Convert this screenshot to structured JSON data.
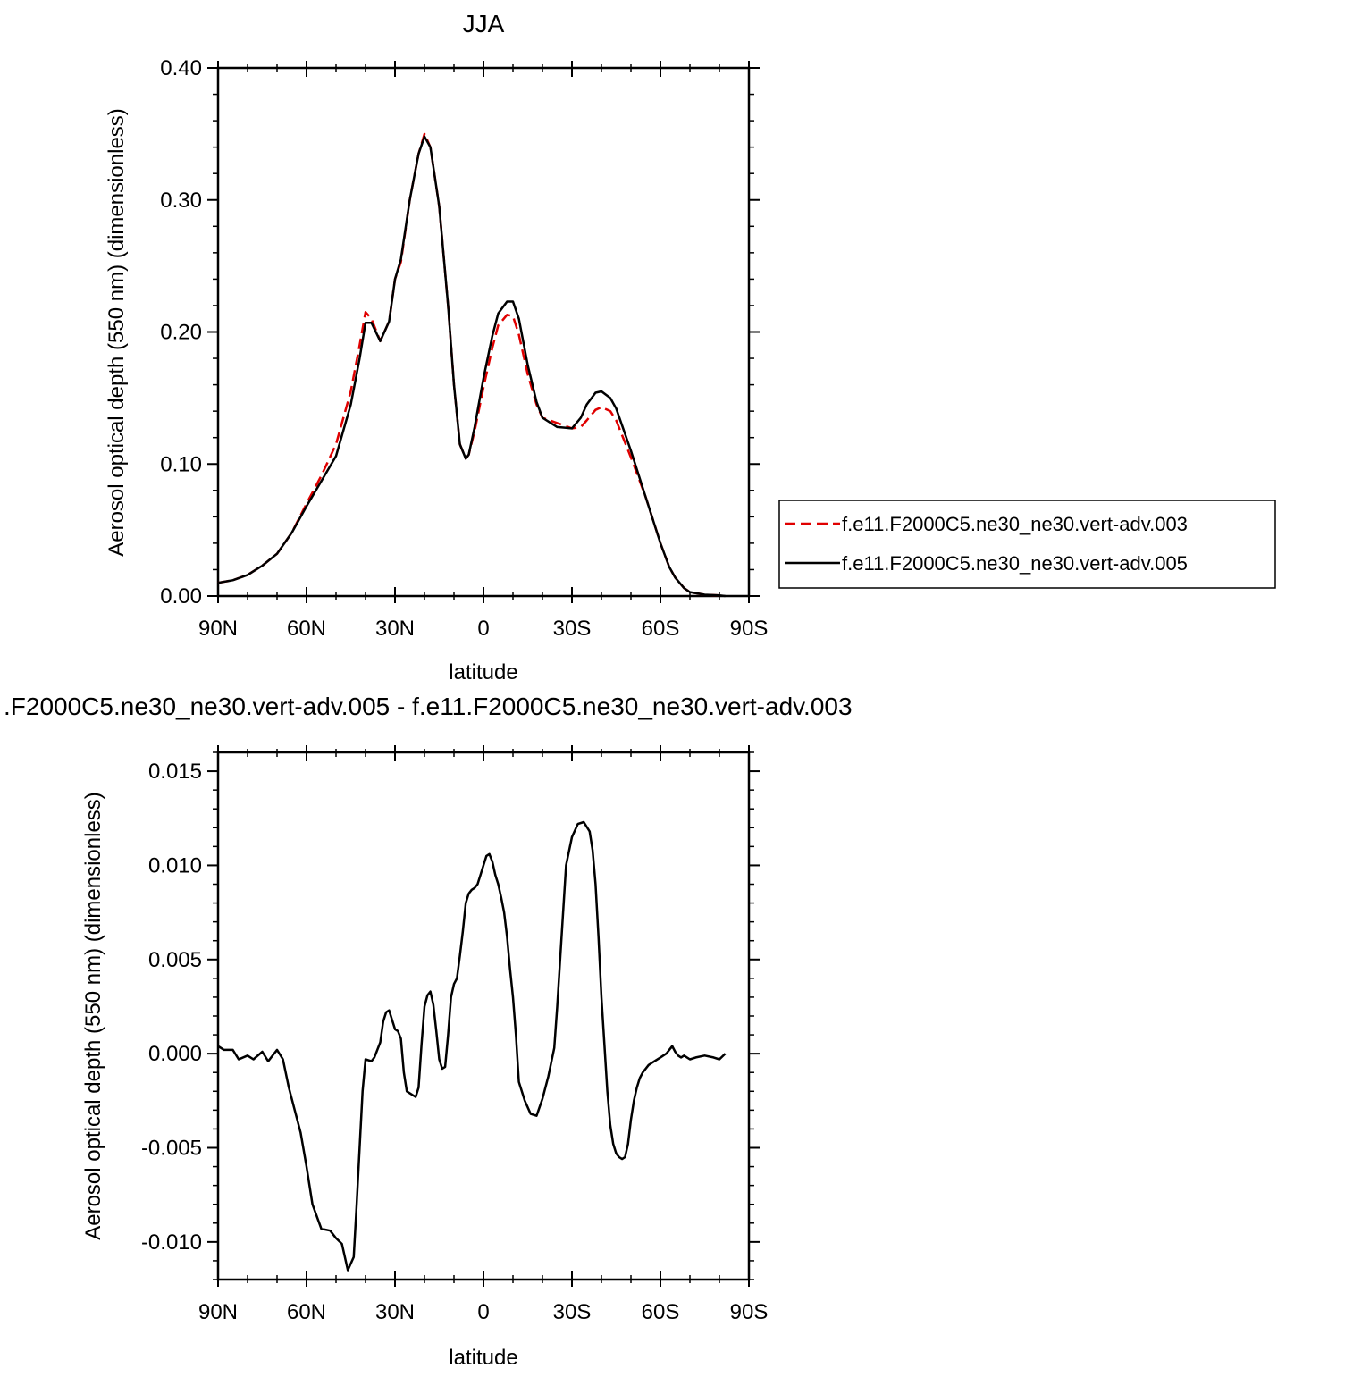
{
  "chart_data": [
    {
      "type": "line",
      "title": "JJA",
      "xlabel": "latitude",
      "ylabel": "Aerosol optical depth (550 nm) (dimensionless)",
      "x_unit": "degrees latitude (positive = N, negative = S)",
      "xlim": [
        90,
        -90
      ],
      "ylim": [
        0.0,
        0.4
      ],
      "x_ticks": [
        90,
        60,
        30,
        0,
        -30,
        -60,
        -90
      ],
      "x_tick_labels": [
        "90N",
        "60N",
        "30N",
        "0",
        "30S",
        "60S",
        "90S"
      ],
      "y_ticks": [
        0.0,
        0.1,
        0.2,
        0.3,
        0.4
      ],
      "y_tick_labels": [
        "0.00",
        "0.10",
        "0.20",
        "0.30",
        "0.40"
      ],
      "grid": false,
      "legend_position": "right",
      "series": [
        {
          "name": "f.e11.F2000C5.ne30_ne30.vert-adv.003",
          "color": "#e00000",
          "dash": "dashed",
          "x": [
            90,
            85,
            80,
            75,
            70,
            65,
            60,
            55,
            50,
            45,
            42,
            40,
            38,
            35,
            32,
            30,
            28,
            25,
            22,
            20,
            18,
            15,
            12,
            10,
            8,
            6,
            5,
            3,
            0,
            -3,
            -5,
            -8,
            -10,
            -12,
            -15,
            -18,
            -20,
            -25,
            -30,
            -33,
            -35,
            -38,
            -40,
            -43,
            -45,
            -50,
            -55,
            -60,
            -63,
            -65,
            -68,
            -70,
            -75,
            -80,
            -82
          ],
          "values": [
            0.01,
            0.012,
            0.016,
            0.023,
            0.032,
            0.048,
            0.07,
            0.091,
            0.115,
            0.155,
            0.19,
            0.215,
            0.21,
            0.193,
            0.208,
            0.24,
            0.253,
            0.3,
            0.335,
            0.35,
            0.34,
            0.295,
            0.22,
            0.16,
            0.115,
            0.104,
            0.107,
            0.125,
            0.158,
            0.188,
            0.205,
            0.213,
            0.212,
            0.198,
            0.168,
            0.145,
            0.135,
            0.131,
            0.127,
            0.128,
            0.133,
            0.141,
            0.143,
            0.14,
            0.133,
            0.105,
            0.075,
            0.04,
            0.022,
            0.014,
            0.006,
            0.003,
            0.001,
            0.0005,
            0.0
          ]
        },
        {
          "name": "f.e11.F2000C5.ne30_ne30.vert-adv.005",
          "color": "#000000",
          "dash": "solid",
          "x": [
            90,
            85,
            80,
            75,
            70,
            65,
            60,
            55,
            50,
            45,
            42,
            40,
            38,
            35,
            32,
            30,
            28,
            25,
            22,
            20,
            18,
            15,
            12,
            10,
            8,
            6,
            5,
            3,
            0,
            -3,
            -5,
            -8,
            -10,
            -12,
            -15,
            -18,
            -20,
            -25,
            -30,
            -33,
            -35,
            -38,
            -40,
            -43,
            -45,
            -50,
            -55,
            -60,
            -63,
            -65,
            -68,
            -70,
            -75,
            -80,
            -82
          ],
          "values": [
            0.01,
            0.012,
            0.016,
            0.023,
            0.032,
            0.048,
            0.068,
            0.087,
            0.106,
            0.145,
            0.18,
            0.207,
            0.207,
            0.193,
            0.208,
            0.24,
            0.255,
            0.3,
            0.335,
            0.348,
            0.34,
            0.295,
            0.22,
            0.16,
            0.115,
            0.104,
            0.107,
            0.128,
            0.165,
            0.197,
            0.214,
            0.223,
            0.223,
            0.21,
            0.175,
            0.147,
            0.135,
            0.128,
            0.127,
            0.135,
            0.145,
            0.154,
            0.155,
            0.15,
            0.142,
            0.11,
            0.075,
            0.04,
            0.022,
            0.014,
            0.006,
            0.003,
            0.001,
            0.0005,
            0.0
          ]
        }
      ]
    },
    {
      "type": "line",
      "title": ".F2000C5.ne30_ne30.vert-adv.005 - f.e11.F2000C5.ne30_ne30.vert-adv.003",
      "xlabel": "latitude",
      "ylabel": "Aerosol optical depth (550 nm) (dimensionless)",
      "x_unit": "degrees latitude (positive = N, negative = S)",
      "xlim": [
        90,
        -90
      ],
      "ylim": [
        -0.012,
        0.016
      ],
      "x_ticks": [
        90,
        60,
        30,
        0,
        -30,
        -60,
        -90
      ],
      "x_tick_labels": [
        "90N",
        "60N",
        "30N",
        "0",
        "30S",
        "60S",
        "90S"
      ],
      "y_ticks": [
        -0.01,
        -0.005,
        0.0,
        0.005,
        0.01,
        0.015
      ],
      "y_tick_labels": [
        "-0.010",
        "-0.005",
        "0.000",
        "0.005",
        "0.010",
        "0.015"
      ],
      "grid": false,
      "series": [
        {
          "color": "#000000",
          "dash": "solid",
          "x": [
            90,
            88,
            85,
            83,
            80,
            78,
            75,
            73,
            70,
            68,
            66,
            64,
            62,
            60,
            58,
            55,
            52,
            50,
            48,
            46,
            44,
            43,
            42,
            41,
            40,
            38,
            37,
            36,
            35,
            34,
            33,
            32,
            31,
            30,
            29,
            28,
            27,
            26,
            25,
            24,
            23,
            22,
            21,
            20,
            19,
            18,
            17,
            16,
            15,
            14,
            13,
            12,
            11,
            10,
            9,
            8,
            7,
            6,
            5,
            4,
            3,
            2,
            1,
            0,
            -1,
            -2,
            -3,
            -4,
            -5,
            -6,
            -7,
            -8,
            -9,
            -10,
            -11,
            -12,
            -14,
            -16,
            -18,
            -20,
            -22,
            -24,
            -25,
            -26,
            -27,
            -28,
            -30,
            -32,
            -34,
            -36,
            -37,
            -38,
            -39,
            -40,
            -41,
            -42,
            -43,
            -44,
            -45,
            -46,
            -47,
            -48,
            -49,
            -50,
            -51,
            -52,
            -53,
            -54,
            -55,
            -56,
            -58,
            -60,
            -62,
            -64,
            -65,
            -66,
            -67,
            -68,
            -70,
            -72,
            -75,
            -78,
            -80,
            -82
          ],
          "values": [
            0.0004,
            0.0002,
            0.0002,
            -0.0003,
            -0.0001,
            -0.0003,
            0.0001,
            -0.0004,
            0.0002,
            -0.0003,
            -0.0018,
            -0.003,
            -0.0042,
            -0.006,
            -0.008,
            -0.0093,
            -0.0094,
            -0.0098,
            -0.0101,
            -0.0115,
            -0.0108,
            -0.008,
            -0.005,
            -0.002,
            -0.0003,
            -0.0004,
            -0.0002,
            0.0002,
            0.0006,
            0.0017,
            0.0022,
            0.0023,
            0.0018,
            0.0013,
            0.0012,
            0.0008,
            -0.001,
            -0.002,
            -0.0021,
            -0.0022,
            -0.0023,
            -0.0018,
            0.0005,
            0.0025,
            0.0031,
            0.0033,
            0.0026,
            0.0012,
            -0.0003,
            -0.0008,
            -0.0007,
            0.001,
            0.003,
            0.0037,
            0.004,
            0.0052,
            0.0065,
            0.008,
            0.0085,
            0.0087,
            0.0088,
            0.009,
            0.0095,
            0.01,
            0.0105,
            0.0106,
            0.0102,
            0.0095,
            0.009,
            0.0083,
            0.0075,
            0.0062,
            0.0045,
            0.003,
            0.001,
            -0.0015,
            -0.0025,
            -0.0032,
            -0.0033,
            -0.0024,
            -0.0012,
            0.0003,
            0.0025,
            0.005,
            0.0075,
            0.01,
            0.0115,
            0.0122,
            0.0123,
            0.0118,
            0.0108,
            0.009,
            0.0062,
            0.003,
            0.0005,
            -0.002,
            -0.0038,
            -0.0048,
            -0.0053,
            -0.0055,
            -0.0056,
            -0.0055,
            -0.0048,
            -0.0035,
            -0.0025,
            -0.0018,
            -0.0013,
            -0.001,
            -0.0008,
            -0.0006,
            -0.0004,
            -0.0002,
            0.0,
            0.0004,
            0.0001,
            -0.0001,
            -0.0002,
            -0.0001,
            -0.0003,
            -0.0002,
            -0.0001,
            -0.0002,
            -0.0003,
            0.0
          ]
        }
      ]
    }
  ]
}
